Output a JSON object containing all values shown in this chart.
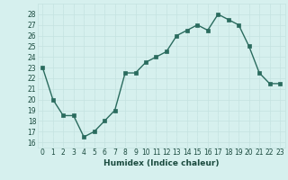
{
  "x": [
    0,
    1,
    2,
    3,
    4,
    5,
    6,
    7,
    8,
    9,
    10,
    11,
    12,
    13,
    14,
    15,
    16,
    17,
    18,
    19,
    20,
    21,
    22,
    23
  ],
  "y": [
    23,
    20,
    18.5,
    18.5,
    16.5,
    17,
    18,
    19,
    22.5,
    22.5,
    23.5,
    24,
    24.5,
    26,
    26.5,
    27,
    26.5,
    28,
    27.5,
    27,
    25,
    22.5,
    21.5,
    21.5
  ],
  "title": "",
  "xlabel": "Humidex (Indice chaleur)",
  "ylabel": "",
  "ylim": [
    16,
    29
  ],
  "yticks": [
    16,
    17,
    18,
    19,
    20,
    21,
    22,
    23,
    24,
    25,
    26,
    27,
    28
  ],
  "xticks": [
    0,
    1,
    2,
    3,
    4,
    5,
    6,
    7,
    8,
    9,
    10,
    11,
    12,
    13,
    14,
    15,
    16,
    17,
    18,
    19,
    20,
    21,
    22,
    23
  ],
  "line_color": "#2a6b5e",
  "marker_color": "#2a6b5e",
  "bg_color": "#d6f0ee",
  "grid_major_color": "#c4e3e0",
  "grid_minor_color": "#daf2f0",
  "label_color": "#1a4a3e",
  "tick_fontsize": 5.5,
  "xlabel_fontsize": 6.5
}
